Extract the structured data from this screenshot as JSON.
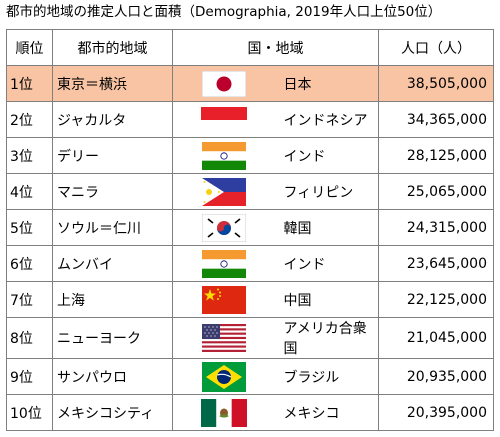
{
  "title": "都市的地域の推定人口と面積（Demographia, 2019年人口上位50位）",
  "headers": {
    "rank": "順位",
    "city": "都市的地域",
    "country": "国・地域",
    "population": "人口（人）"
  },
  "highlight_color": "#f8c4a4",
  "rows": [
    {
      "rank": "1位",
      "city": "東京＝横浜",
      "flag": "japan-flag",
      "country": "日本",
      "population": "38,505,000"
    },
    {
      "rank": "2位",
      "city": "ジャカルタ",
      "flag": "indonesia-flag",
      "country": "インドネシア",
      "population": "34,365,000"
    },
    {
      "rank": "3位",
      "city": "デリー",
      "flag": "india-flag",
      "country": "インド",
      "population": "28,125,000"
    },
    {
      "rank": "4位",
      "city": "マニラ",
      "flag": "philippines-flag",
      "country": "フィリピン",
      "population": "25,065,000"
    },
    {
      "rank": "5位",
      "city": "ソウル＝仁川",
      "flag": "south-korea-flag",
      "country": "韓国",
      "population": "24,315,000"
    },
    {
      "rank": "6位",
      "city": "ムンバイ",
      "flag": "india-flag",
      "country": "インド",
      "population": "23,645,000"
    },
    {
      "rank": "7位",
      "city": "上海",
      "flag": "china-flag",
      "country": "中国",
      "population": "22,125,000"
    },
    {
      "rank": "8位",
      "city": "ニューヨーク",
      "flag": "usa-flag",
      "country": "アメリカ合衆国",
      "population": "21,045,000"
    },
    {
      "rank": "9位",
      "city": "サンパウロ",
      "flag": "brazil-flag",
      "country": "ブラジル",
      "population": "20,935,000"
    },
    {
      "rank": "10位",
      "city": "メキシコシティ",
      "flag": "mexico-flag",
      "country": "メキシコ",
      "population": "20,395,000"
    }
  ]
}
